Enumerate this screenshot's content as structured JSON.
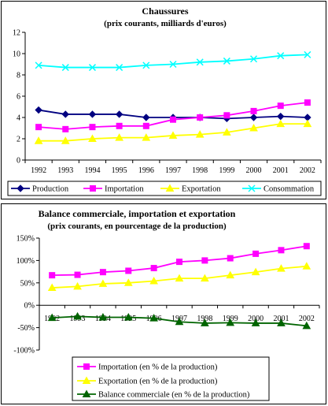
{
  "chart_data": [
    {
      "type": "line",
      "title": "Chaussures",
      "subtitle": "(prix courants, milliards d'euros)",
      "xlabel": "",
      "ylabel": "",
      "x": [
        "1992",
        "1993",
        "1994",
        "1995",
        "1996",
        "1997",
        "1998",
        "1999",
        "2000",
        "2001",
        "2002"
      ],
      "ylim": [
        0,
        12
      ],
      "yticks": [
        "0",
        "2",
        "4",
        "6",
        "8",
        "10",
        "12"
      ],
      "grid": false,
      "legend_position": "bottom",
      "series": [
        {
          "name": "Production",
          "color": "#000080",
          "marker": "diamond",
          "values": [
            4.7,
            4.3,
            4.3,
            4.3,
            4.0,
            4.0,
            4.0,
            3.9,
            4.0,
            4.1,
            4.0
          ]
        },
        {
          "name": "Importation",
          "color": "#ff00ff",
          "marker": "square",
          "values": [
            3.1,
            2.9,
            3.1,
            3.2,
            3.2,
            3.8,
            4.0,
            4.2,
            4.6,
            5.1,
            5.4
          ]
        },
        {
          "name": "Exportation",
          "color": "#ffff00",
          "marker": "triangle",
          "values": [
            1.8,
            1.8,
            2.0,
            2.1,
            2.1,
            2.3,
            2.4,
            2.6,
            3.0,
            3.4,
            3.4
          ]
        },
        {
          "name": "Consommation",
          "color": "#00ffff",
          "marker": "x",
          "values": [
            8.9,
            8.7,
            8.7,
            8.7,
            8.9,
            9.0,
            9.2,
            9.3,
            9.5,
            9.8,
            9.9
          ]
        }
      ]
    },
    {
      "type": "line",
      "title": "Balance commerciale, importation et exportation",
      "subtitle": "(prix courants, en pourcentage de la production)",
      "xlabel": "",
      "ylabel": "",
      "x": [
        "1992",
        "1993",
        "1994",
        "1995",
        "1996",
        "1997",
        "1998",
        "1999",
        "2000",
        "2001",
        "2002"
      ],
      "ylim": [
        -100,
        150
      ],
      "yticks": [
        "-100%",
        "-50%",
        "0%",
        "50%",
        "100%",
        "150%"
      ],
      "grid": false,
      "legend_position": "bottom",
      "series": [
        {
          "name": "Importation (en % de la production)",
          "color": "#ff00ff",
          "marker": "square",
          "values": [
            67,
            68,
            74,
            77,
            83,
            97,
            100,
            105,
            115,
            123,
            132
          ]
        },
        {
          "name": "Exportation (en % de la production)",
          "color": "#ffff00",
          "marker": "triangle",
          "values": [
            39,
            42,
            48,
            50,
            54,
            60,
            60,
            67,
            74,
            82,
            87
          ]
        },
        {
          "name": "Balance commerciale (en % de la production)",
          "color": "#006400",
          "marker": "triangle",
          "values": [
            -28,
            -25,
            -27,
            -27,
            -29,
            -37,
            -40,
            -39,
            -40,
            -40,
            -46
          ]
        }
      ]
    }
  ]
}
